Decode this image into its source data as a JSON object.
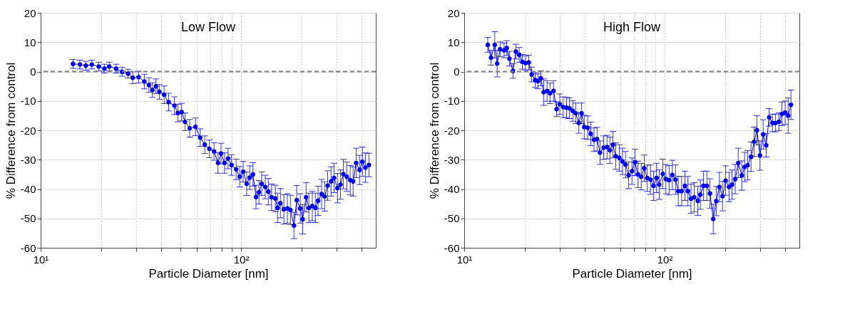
{
  "chart_data": [
    {
      "type": "line",
      "title": "Low Flow",
      "xlabel": "Particle Diameter [nm]",
      "ylabel": "% Difference from control",
      "log": "x",
      "grid": true,
      "marker": "circle",
      "line_style": "solid",
      "xlim": [
        10,
        470
      ],
      "xticks": [
        {
          "value": 10,
          "label": "10¹"
        },
        {
          "value": 20,
          "label": null
        },
        {
          "value": 30,
          "label": null
        },
        {
          "value": 40,
          "label": null
        },
        {
          "value": 50,
          "label": null
        },
        {
          "value": 60,
          "label": null
        },
        {
          "value": 70,
          "label": null
        },
        {
          "value": 80,
          "label": null
        },
        {
          "value": 90,
          "label": null
        },
        {
          "value": 100,
          "label": "10²"
        },
        {
          "value": 200,
          "label": null
        },
        {
          "value": 300,
          "label": null
        },
        {
          "value": 400,
          "label": null
        }
      ],
      "ylim": [
        -60,
        20
      ],
      "yticks": [
        -60,
        -50,
        -40,
        -30,
        -20,
        -10,
        0,
        10,
        20
      ],
      "ref_lines": [
        {
          "axis": "y",
          "value": 0,
          "color": "#808080",
          "line_style": "dashed"
        }
      ],
      "x": [
        14.5,
        15.7,
        16.8,
        18.0,
        19.5,
        20.8,
        22.0,
        23.8,
        25.5,
        27.3,
        28.8,
        30.8,
        32.9,
        34.7,
        36.1,
        37.6,
        39.1,
        41.3,
        43.5,
        46.5,
        48.4,
        50.5,
        52.5,
        55.4,
        59.2,
        62.5,
        65.9,
        69.5,
        73.3,
        76.7,
        79.4,
        82.7,
        86.1,
        89.6,
        94.5,
        98.4,
        102.4,
        106.6,
        110.4,
        114.6,
        118.7,
        122.8,
        126.8,
        132.0,
        136.7,
        141.9,
        148.2,
        152.1,
        157.1,
        163.5,
        170.3,
        176.3,
        183.5,
        189.5,
        197.3,
        202.8,
        211.0,
        217.9,
        226.6,
        234.7,
        242.2,
        252.2,
        261.2,
        270.4,
        281.2,
        290.9,
        302.7,
        313.3,
        323.6,
        336.6,
        350.5,
        362.2,
        375.0,
        390.0,
        402.8,
        416.9,
        434.5
      ],
      "series": [
        {
          "color": "#0000ff",
          "values": [
            2.6,
            2.4,
            2.0,
            2.4,
            1.7,
            1.0,
            1.7,
            1.0,
            -0.1,
            -0.7,
            -2.1,
            -1.9,
            -3.4,
            -4.6,
            -6.3,
            -5.0,
            -6.9,
            -7.9,
            -10.4,
            -11.6,
            -14.1,
            -13.8,
            -17.1,
            -19.3,
            -18.8,
            -22.5,
            -24.9,
            -26.3,
            -27.2,
            -31.1,
            -27.9,
            -31.1,
            -29.6,
            -31.8,
            -33.3,
            -35.8,
            -34.1,
            -38.2,
            -36.1,
            -35.0,
            -42.7,
            -41.1,
            -38.2,
            -39.3,
            -40.9,
            -42.8,
            -43.2,
            -46.4,
            -44.8,
            -46.9,
            -46.6,
            -47.1,
            -52.4,
            -43.8,
            -46.6,
            -50.3,
            -42.8,
            -46.4,
            -45.8,
            -46.4,
            -44.0,
            -41.7,
            -42.5,
            -38.8,
            -37.4,
            -36.2,
            -39.7,
            -38.5,
            -34.9,
            -35.8,
            -37.0,
            -37.4,
            -31.1,
            -33.5,
            -30.7,
            -32.7,
            -31.8
          ],
          "errors": [
            1.5,
            1.5,
            1.5,
            1.5,
            1.5,
            1.5,
            1.5,
            1.5,
            1.5,
            1.5,
            2,
            2,
            2.5,
            2.5,
            2.5,
            2.5,
            2.5,
            3,
            3,
            3,
            3,
            3,
            3,
            3,
            3,
            3,
            3,
            3,
            3,
            3.5,
            3.5,
            3.5,
            3.5,
            3.5,
            3.5,
            3.5,
            3.5,
            4,
            4,
            4,
            4,
            4,
            4,
            4,
            4.5,
            4.5,
            4.5,
            5,
            5,
            5,
            5,
            5,
            4.5,
            5,
            5,
            5,
            5,
            5,
            5,
            5,
            5,
            5,
            5,
            5,
            5,
            5,
            5,
            5,
            5,
            5,
            5,
            5,
            5,
            5,
            5,
            5,
            4
          ]
        }
      ]
    },
    {
      "type": "line",
      "title": "High Flow",
      "xlabel": "Particle Diameter [nm]",
      "ylabel": "% Difference from control",
      "log": "x",
      "grid": true,
      "marker": "circle",
      "line_style": "solid",
      "xlim": [
        10,
        470
      ],
      "xticks": [
        {
          "value": 10,
          "label": "10¹"
        },
        {
          "value": 20,
          "label": null
        },
        {
          "value": 30,
          "label": null
        },
        {
          "value": 40,
          "label": null
        },
        {
          "value": 50,
          "label": null
        },
        {
          "value": 60,
          "label": null
        },
        {
          "value": 70,
          "label": null
        },
        {
          "value": 80,
          "label": null
        },
        {
          "value": 90,
          "label": null
        },
        {
          "value": 100,
          "label": "10²"
        },
        {
          "value": 200,
          "label": null
        },
        {
          "value": 300,
          "label": null
        },
        {
          "value": 400,
          "label": null
        }
      ],
      "ylim": [
        -60,
        20
      ],
      "yticks": [
        -60,
        -50,
        -40,
        -30,
        -20,
        -10,
        0,
        10,
        20
      ],
      "ref_lines": [
        {
          "axis": "y",
          "value": 0,
          "color": "#808080",
          "line_style": "dashed"
        }
      ],
      "x": [
        13.1,
        13.6,
        14.2,
        14.6,
        15.1,
        15.8,
        16.3,
        16.8,
        17.5,
        18.1,
        18.8,
        19.5,
        20.2,
        21.0,
        21.7,
        22.6,
        23.3,
        24.1,
        24.9,
        25.9,
        26.8,
        27.9,
        28.9,
        30.0,
        31.2,
        32.4,
        33.5,
        34.8,
        36.0,
        37.3,
        38.5,
        39.7,
        41.3,
        42.8,
        44.4,
        46.0,
        47.6,
        49.6,
        51.6,
        53.3,
        55.2,
        57.0,
        59.4,
        61.6,
        63.8,
        66.1,
        68.7,
        71.1,
        73.6,
        76.4,
        79.1,
        81.9,
        85.0,
        88.0,
        91.1,
        94.0,
        97.9,
        101.4,
        105.2,
        109.2,
        113.3,
        116.9,
        121.5,
        126.2,
        130.6,
        135.3,
        140.4,
        146.2,
        150.7,
        156.1,
        162.5,
        168.3,
        174.7,
        180.8,
        187.5,
        194.5,
        201.4,
        209.5,
        216.8,
        225.0,
        232.9,
        242.5,
        250.5,
        259.3,
        269.8,
        279.4,
        288.6,
        298.8,
        310.0,
        320.9,
        332.1,
        345.0,
        357.0,
        371.5,
        384.6,
        399.1,
        413.1,
        426.6
      ],
      "series": [
        {
          "color": "#0000ff",
          "values": [
            9.1,
            4.7,
            9.1,
            2.7,
            7.6,
            7.2,
            8.0,
            4.4,
            0.2,
            6.8,
            5.7,
            3.3,
            2.9,
            3.1,
            -1.0,
            -2.9,
            -3.3,
            -2.3,
            -7.0,
            -6.6,
            -7.4,
            -6.6,
            -12.8,
            -11.1,
            -12.1,
            -12.3,
            -12.5,
            -13.4,
            -14.2,
            -17.5,
            -14.2,
            -18.9,
            -19.1,
            -21.2,
            -23.2,
            -23.0,
            -27.6,
            -25.9,
            -25.7,
            -26.8,
            -24.9,
            -28.8,
            -29.4,
            -30.6,
            -31.7,
            -35.3,
            -33.9,
            -30.9,
            -35.0,
            -35.8,
            -32.9,
            -36.3,
            -36.8,
            -38.9,
            -36.2,
            -38.5,
            -34.8,
            -36.6,
            -37.0,
            -35.2,
            -36.8,
            -40.7,
            -40.7,
            -38.9,
            -40.7,
            -43.3,
            -42.8,
            -44.0,
            -41.9,
            -38.9,
            -38.9,
            -41.5,
            -50.2,
            -44.1,
            -39.3,
            -42.4,
            -37.1,
            -39.3,
            -38.5,
            -36.6,
            -31.1,
            -35.4,
            -32.5,
            -31.9,
            -29.0,
            -23.9,
            -20.0,
            -28.6,
            -21.4,
            -25.1,
            -15.6,
            -17.5,
            -17.5,
            -17.1,
            -14.4,
            -14.0,
            -15.0,
            -11.3
          ],
          "errors": [
            2.5,
            2.5,
            4.5,
            4.5,
            2.5,
            2.5,
            2.5,
            2.5,
            2.5,
            2.5,
            2.5,
            2.5,
            2.5,
            2.5,
            2.5,
            2.5,
            2.5,
            2.5,
            4.5,
            3.5,
            3.5,
            3.5,
            2.5,
            3.5,
            3.5,
            3.5,
            3.5,
            3.5,
            3.5,
            3.5,
            3.5,
            4,
            4,
            4,
            4,
            4,
            4,
            4,
            4,
            4.5,
            4.5,
            4.5,
            4.5,
            4.5,
            4.5,
            4.5,
            4.5,
            4.5,
            4.5,
            4.5,
            4.5,
            4.5,
            5,
            5,
            5,
            5,
            5,
            5,
            5,
            5,
            5,
            5,
            5,
            5,
            5,
            5,
            5,
            5,
            5,
            5,
            5,
            5,
            5,
            5,
            5,
            5,
            5,
            5,
            5,
            5,
            5,
            5,
            5,
            5,
            5,
            5,
            5,
            5,
            5,
            4,
            3,
            3,
            3,
            3,
            4,
            4,
            6,
            5
          ]
        }
      ]
    }
  ]
}
